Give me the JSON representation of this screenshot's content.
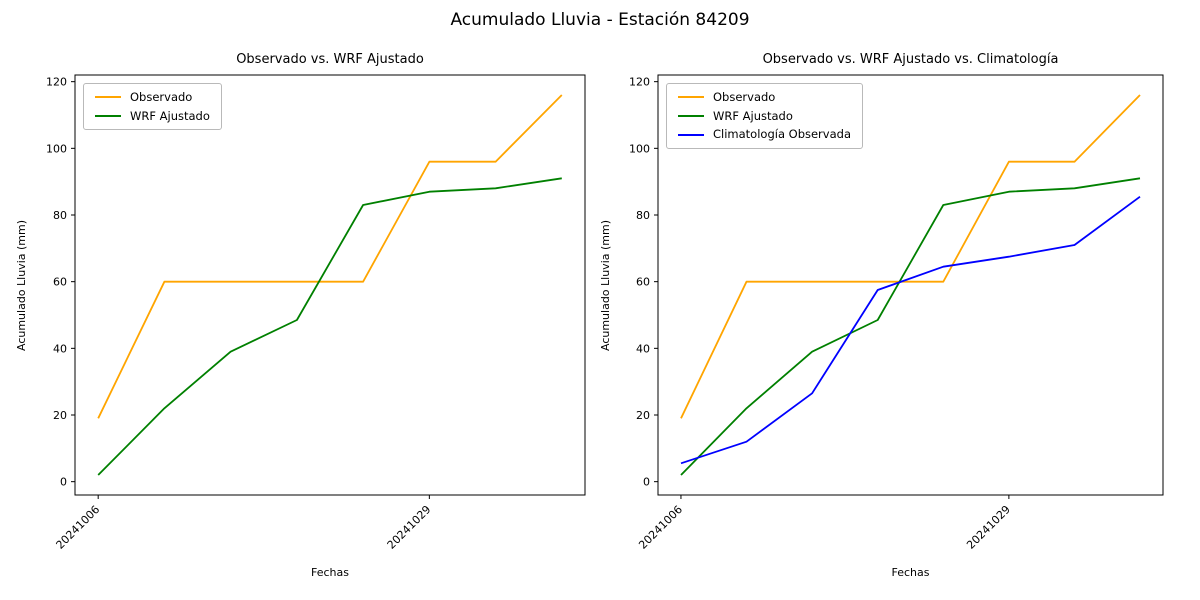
{
  "figure": {
    "suptitle": "Acumulado Lluvia - Estación 84209"
  },
  "chart_data": [
    {
      "type": "line",
      "title": "Observado vs. WRF Ajustado",
      "xlabel": "Fechas",
      "ylabel": "Acumulado Lluvia (mm)",
      "legend_position": "upper left",
      "grid": false,
      "ylim": [
        -4,
        122
      ],
      "y_ticks": [
        0,
        20,
        40,
        60,
        80,
        100,
        120
      ],
      "x_tick_labels": [
        {
          "index": 0,
          "label": "20241006"
        },
        {
          "index": 5,
          "label": "20241029"
        }
      ],
      "series": [
        {
          "name": "Observado",
          "color": "#ffa500",
          "values": [
            19,
            60,
            60,
            60,
            60,
            96,
            96,
            116
          ]
        },
        {
          "name": "WRF Ajustado",
          "color": "#008000",
          "values": [
            2,
            22,
            39,
            48.5,
            83,
            87,
            88,
            91
          ]
        }
      ]
    },
    {
      "type": "line",
      "title": "Observado vs. WRF Ajustado vs. Climatología",
      "xlabel": "Fechas",
      "ylabel": "Acumulado Lluvia (mm)",
      "legend_position": "upper left",
      "grid": false,
      "ylim": [
        -4,
        122
      ],
      "y_ticks": [
        0,
        20,
        40,
        60,
        80,
        100,
        120
      ],
      "x_tick_labels": [
        {
          "index": 0,
          "label": "20241006"
        },
        {
          "index": 5,
          "label": "20241029"
        }
      ],
      "series": [
        {
          "name": "Observado",
          "color": "#ffa500",
          "values": [
            19,
            60,
            60,
            60,
            60,
            96,
            96,
            116
          ]
        },
        {
          "name": "WRF Ajustado",
          "color": "#008000",
          "values": [
            2,
            22,
            39,
            48.5,
            83,
            87,
            88,
            91
          ]
        },
        {
          "name": "Climatología Observada",
          "color": "#0000ff",
          "values": [
            5.5,
            12,
            26.5,
            57.5,
            64.5,
            67.5,
            71,
            85.5
          ]
        }
      ]
    }
  ]
}
